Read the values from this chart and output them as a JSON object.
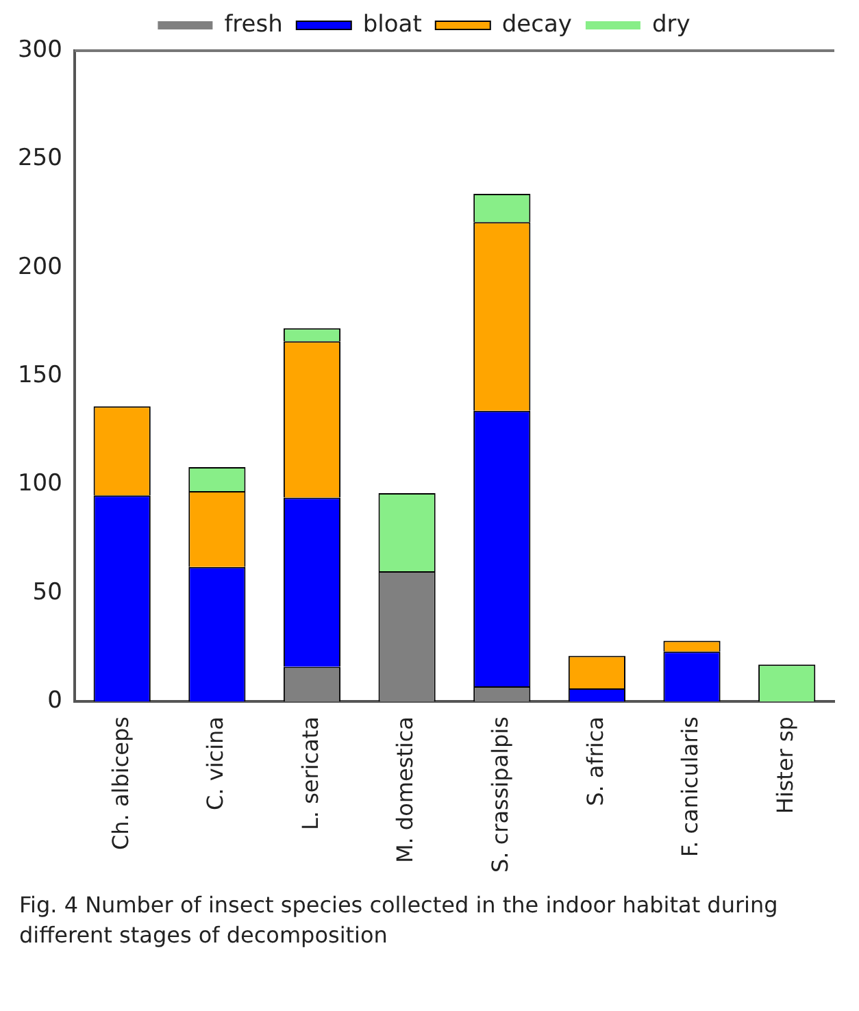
{
  "chart_data": {
    "type": "bar",
    "stacked": true,
    "legend": "top",
    "categories": [
      "Ch. albiceps",
      "C. vicina",
      "L. sericata",
      "M. domestica",
      "S. crassipalpis",
      "S. africa",
      "F. canicularis",
      "Hister sp"
    ],
    "series": [
      {
        "name": "fresh",
        "color": "#808080",
        "values": [
          0,
          0,
          16,
          60,
          7,
          0,
          0,
          0
        ]
      },
      {
        "name": "bloat",
        "color": "#0000ff",
        "values": [
          95,
          62,
          78,
          0,
          127,
          6,
          23,
          0
        ]
      },
      {
        "name": "decay",
        "color": "#ffa500",
        "values": [
          41,
          35,
          72,
          0,
          87,
          15,
          5,
          0
        ]
      },
      {
        "name": "dry",
        "color": "#88ee88",
        "values": [
          0,
          11,
          6,
          36,
          13,
          0,
          0,
          17
        ]
      }
    ],
    "ylim": [
      0,
      300
    ],
    "yticks": [
      0,
      50,
      100,
      150,
      200,
      250,
      300
    ],
    "grid": false,
    "annotations": [
      "Fig. 4 Number of insect species collected in the indoor habitat during different stages of decomposition"
    ]
  }
}
